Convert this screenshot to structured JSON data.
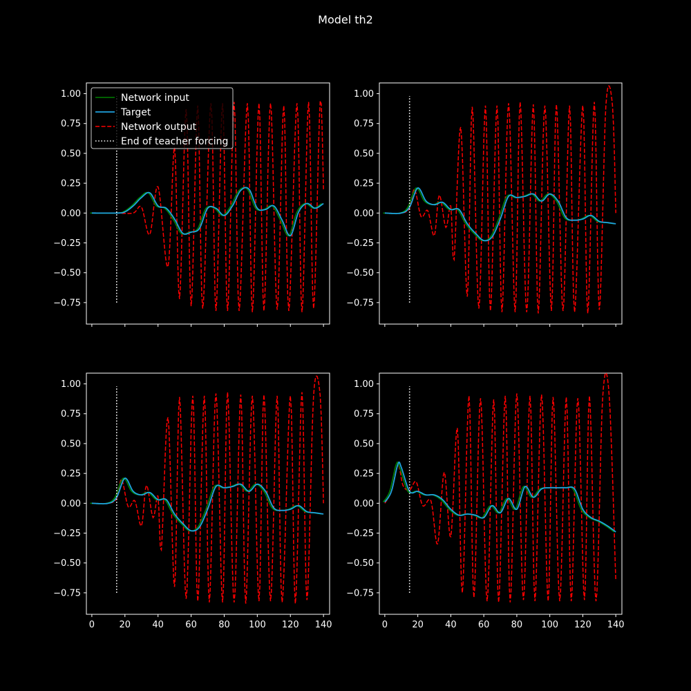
{
  "figure": {
    "title": "Model th2",
    "background": "#000000",
    "colors": {
      "input": "#008000",
      "target": "#1fa3e0",
      "output": "#ff0000",
      "marker": "#ffffff",
      "axes": "#ffffff"
    }
  },
  "legend": {
    "entries": [
      "Network input",
      "Target",
      "Network output",
      "End of teacher forcing"
    ]
  },
  "chart_data": [
    {
      "type": "line",
      "panel": "top-left",
      "xlim": [
        -3.3,
        143.7
      ],
      "ylim": [
        -0.93,
        1.09
      ],
      "xticks": [
        0,
        20,
        40,
        60,
        80,
        100,
        120,
        140
      ],
      "yticks": [
        -0.75,
        -0.5,
        -0.25,
        0.0,
        0.25,
        0.5,
        0.75,
        1.0
      ],
      "show_xtick_labels": false,
      "show_legend": true,
      "legend_position": "upper left",
      "teacher_forcing_end": {
        "x": 15,
        "y_range": [
          -0.75,
          0.98
        ]
      },
      "target_keypoints": [
        [
          0,
          0
        ],
        [
          15,
          0
        ],
        [
          20,
          0.01
        ],
        [
          25,
          0.06
        ],
        [
          30,
          0.13
        ],
        [
          35,
          0.17
        ],
        [
          40,
          0.06
        ],
        [
          45,
          0.04
        ],
        [
          50,
          -0.05
        ],
        [
          55,
          -0.17
        ],
        [
          60,
          -0.16
        ],
        [
          65,
          -0.13
        ],
        [
          70,
          0.04
        ],
        [
          75,
          0.04
        ],
        [
          80,
          -0.02
        ],
        [
          85,
          0.06
        ],
        [
          90,
          0.19
        ],
        [
          95,
          0.2
        ],
        [
          100,
          0.04
        ],
        [
          105,
          0.03
        ],
        [
          110,
          0.06
        ],
        [
          115,
          -0.06
        ],
        [
          120,
          -0.19
        ],
        [
          125,
          0.01
        ],
        [
          130,
          0.08
        ],
        [
          135,
          0.04
        ],
        [
          140,
          0.08
        ]
      ],
      "output_keypoints": [
        [
          0,
          0
        ],
        [
          15,
          0
        ],
        [
          25,
          0
        ],
        [
          30,
          0.05
        ],
        [
          35,
          -0.18
        ],
        [
          40,
          0.22
        ],
        [
          46,
          -0.45
        ],
        [
          50,
          0.55
        ],
        [
          53,
          -0.72
        ],
        [
          57,
          0.87
        ],
        [
          60,
          -0.78
        ],
        [
          64,
          0.9
        ],
        [
          67,
          -0.8
        ],
        [
          72,
          0.92
        ],
        [
          75,
          -0.82
        ],
        [
          79,
          0.92
        ],
        [
          82,
          -0.82
        ],
        [
          86,
          0.93
        ],
        [
          89,
          -0.82
        ],
        [
          94,
          0.92
        ],
        [
          97,
          -0.83
        ],
        [
          101,
          0.92
        ],
        [
          104,
          -0.82
        ],
        [
          108,
          0.92
        ],
        [
          112,
          -0.81
        ],
        [
          116,
          0.9
        ],
        [
          119,
          -0.82
        ],
        [
          124,
          0.92
        ],
        [
          127,
          -0.83
        ],
        [
          131,
          0.93
        ],
        [
          134,
          -0.8
        ],
        [
          138,
          0.94
        ],
        [
          140,
          0.2
        ]
      ]
    },
    {
      "type": "line",
      "panel": "top-right",
      "xlim": [
        -3.3,
        143.7
      ],
      "ylim": [
        -0.93,
        1.09
      ],
      "xticks": [
        0,
        20,
        40,
        60,
        80,
        100,
        120,
        140
      ],
      "yticks": [
        -0.75,
        -0.5,
        -0.25,
        0.0,
        0.25,
        0.5,
        0.75,
        1.0
      ],
      "show_xtick_labels": false,
      "show_legend": false,
      "teacher_forcing_end": {
        "x": 15,
        "y_range": [
          -0.75,
          0.98
        ]
      },
      "target_keypoints": [
        [
          0,
          0
        ],
        [
          10,
          0
        ],
        [
          15,
          0.05
        ],
        [
          20,
          0.21
        ],
        [
          25,
          0.1
        ],
        [
          30,
          0.07
        ],
        [
          35,
          0.09
        ],
        [
          40,
          0.03
        ],
        [
          45,
          0.03
        ],
        [
          50,
          -0.09
        ],
        [
          55,
          -0.17
        ],
        [
          60,
          -0.23
        ],
        [
          65,
          -0.2
        ],
        [
          70,
          -0.05
        ],
        [
          75,
          0.14
        ],
        [
          80,
          0.13
        ],
        [
          85,
          0.14
        ],
        [
          90,
          0.16
        ],
        [
          95,
          0.1
        ],
        [
          100,
          0.16
        ],
        [
          105,
          0.1
        ],
        [
          110,
          -0.04
        ],
        [
          115,
          -0.06
        ],
        [
          120,
          -0.05
        ],
        [
          125,
          -0.02
        ],
        [
          130,
          -0.07
        ],
        [
          135,
          -0.08
        ],
        [
          140,
          -0.09
        ]
      ],
      "output_keypoints": [
        [
          0,
          0
        ],
        [
          10,
          0
        ],
        [
          15,
          0.04
        ],
        [
          18,
          0.2
        ],
        [
          22,
          -0.03
        ],
        [
          26,
          0.02
        ],
        [
          30,
          -0.19
        ],
        [
          33,
          0.15
        ],
        [
          37,
          -0.12
        ],
        [
          40,
          0.06
        ],
        [
          42,
          -0.39
        ],
        [
          46,
          0.72
        ],
        [
          50,
          -0.7
        ],
        [
          53,
          0.89
        ],
        [
          57,
          -0.8
        ],
        [
          61,
          0.9
        ],
        [
          64,
          -0.82
        ],
        [
          68,
          0.9
        ],
        [
          71,
          -0.83
        ],
        [
          75,
          0.92
        ],
        [
          79,
          -0.83
        ],
        [
          82,
          0.93
        ],
        [
          86,
          -0.83
        ],
        [
          90,
          0.91
        ],
        [
          93,
          -0.84
        ],
        [
          97,
          0.9
        ],
        [
          101,
          -0.82
        ],
        [
          104,
          0.91
        ],
        [
          108,
          -0.82
        ],
        [
          112,
          0.9
        ],
        [
          115,
          -0.83
        ],
        [
          120,
          0.9
        ],
        [
          123,
          -0.84
        ],
        [
          127,
          0.93
        ],
        [
          130,
          -0.81
        ],
        [
          134,
          0.9
        ],
        [
          138,
          0.9
        ],
        [
          140,
          0
        ]
      ]
    },
    {
      "type": "line",
      "panel": "bottom-left",
      "xlim": [
        -3.3,
        143.7
      ],
      "ylim": [
        -0.93,
        1.09
      ],
      "xticks": [
        0,
        20,
        40,
        60,
        80,
        100,
        120,
        140
      ],
      "yticks": [
        -0.75,
        -0.5,
        -0.25,
        0.0,
        0.25,
        0.5,
        0.75,
        1.0
      ],
      "show_xtick_labels": true,
      "show_legend": false,
      "teacher_forcing_end": {
        "x": 15,
        "y_range": [
          -0.75,
          0.98
        ]
      },
      "target_keypoints": [
        [
          0,
          0
        ],
        [
          10,
          0
        ],
        [
          15,
          0.05
        ],
        [
          20,
          0.21
        ],
        [
          25,
          0.1
        ],
        [
          30,
          0.07
        ],
        [
          35,
          0.09
        ],
        [
          40,
          0.03
        ],
        [
          45,
          0.03
        ],
        [
          50,
          -0.09
        ],
        [
          55,
          -0.17
        ],
        [
          60,
          -0.23
        ],
        [
          65,
          -0.2
        ],
        [
          70,
          -0.05
        ],
        [
          75,
          0.14
        ],
        [
          80,
          0.13
        ],
        [
          85,
          0.14
        ],
        [
          90,
          0.16
        ],
        [
          95,
          0.1
        ],
        [
          100,
          0.16
        ],
        [
          105,
          0.1
        ],
        [
          110,
          -0.04
        ],
        [
          115,
          -0.06
        ],
        [
          120,
          -0.05
        ],
        [
          125,
          -0.02
        ],
        [
          130,
          -0.07
        ],
        [
          135,
          -0.08
        ],
        [
          140,
          -0.09
        ]
      ],
      "output_keypoints": [
        [
          0,
          0
        ],
        [
          10,
          0
        ],
        [
          15,
          0.04
        ],
        [
          18,
          0.2
        ],
        [
          22,
          -0.03
        ],
        [
          26,
          0.02
        ],
        [
          30,
          -0.19
        ],
        [
          33,
          0.15
        ],
        [
          37,
          -0.12
        ],
        [
          40,
          0.06
        ],
        [
          42,
          -0.39
        ],
        [
          46,
          0.72
        ],
        [
          50,
          -0.7
        ],
        [
          53,
          0.89
        ],
        [
          57,
          -0.8
        ],
        [
          61,
          0.9
        ],
        [
          64,
          -0.82
        ],
        [
          68,
          0.9
        ],
        [
          71,
          -0.83
        ],
        [
          75,
          0.92
        ],
        [
          79,
          -0.83
        ],
        [
          82,
          0.93
        ],
        [
          86,
          -0.83
        ],
        [
          90,
          0.91
        ],
        [
          93,
          -0.84
        ],
        [
          97,
          0.9
        ],
        [
          101,
          -0.82
        ],
        [
          104,
          0.91
        ],
        [
          108,
          -0.82
        ],
        [
          112,
          0.9
        ],
        [
          115,
          -0.83
        ],
        [
          120,
          0.9
        ],
        [
          123,
          -0.84
        ],
        [
          127,
          0.93
        ],
        [
          130,
          -0.81
        ],
        [
          134,
          0.9
        ],
        [
          138,
          0.9
        ],
        [
          140,
          0
        ]
      ]
    },
    {
      "type": "line",
      "panel": "bottom-right",
      "xlim": [
        -3.3,
        143.7
      ],
      "ylim": [
        -0.93,
        1.09
      ],
      "xticks": [
        0,
        20,
        40,
        60,
        80,
        100,
        120,
        140
      ],
      "yticks": [
        -0.75,
        -0.5,
        -0.25,
        0.0,
        0.25,
        0.5,
        0.75,
        1.0
      ],
      "show_xtick_labels": true,
      "show_legend": false,
      "teacher_forcing_end": {
        "x": 15,
        "y_range": [
          -0.75,
          0.98
        ]
      },
      "target_keypoints": [
        [
          0,
          0.01
        ],
        [
          4,
          0.1
        ],
        [
          8,
          0.33
        ],
        [
          10,
          0.3
        ],
        [
          15,
          0.1
        ],
        [
          20,
          0.1
        ],
        [
          25,
          0.07
        ],
        [
          30,
          0.07
        ],
        [
          35,
          0.03
        ],
        [
          40,
          -0.05
        ],
        [
          45,
          -0.1
        ],
        [
          50,
          -0.09
        ],
        [
          55,
          -0.1
        ],
        [
          60,
          -0.12
        ],
        [
          65,
          -0.02
        ],
        [
          70,
          -0.08
        ],
        [
          75,
          0.04
        ],
        [
          80,
          -0.05
        ],
        [
          85,
          0.14
        ],
        [
          90,
          0.05
        ],
        [
          95,
          0.12
        ],
        [
          100,
          0.13
        ],
        [
          105,
          0.13
        ],
        [
          110,
          0.13
        ],
        [
          115,
          0.12
        ],
        [
          120,
          -0.05
        ],
        [
          125,
          -0.12
        ],
        [
          130,
          -0.15
        ],
        [
          135,
          -0.19
        ],
        [
          140,
          -0.24
        ]
      ],
      "output_keypoints": [
        [
          0,
          0
        ],
        [
          4,
          0.1
        ],
        [
          8,
          0.32
        ],
        [
          11,
          0.15
        ],
        [
          15,
          0.11
        ],
        [
          19,
          0.18
        ],
        [
          23,
          -0.02
        ],
        [
          28,
          0.02
        ],
        [
          32,
          -0.34
        ],
        [
          36,
          0.26
        ],
        [
          40,
          -0.28
        ],
        [
          44,
          0.63
        ],
        [
          47,
          -0.75
        ],
        [
          51,
          0.9
        ],
        [
          54,
          -0.79
        ],
        [
          58,
          0.88
        ],
        [
          62,
          -0.82
        ],
        [
          66,
          0.87
        ],
        [
          69,
          -0.83
        ],
        [
          73,
          0.9
        ],
        [
          76,
          -0.83
        ],
        [
          80,
          0.92
        ],
        [
          84,
          -0.81
        ],
        [
          88,
          0.9
        ],
        [
          91,
          -0.82
        ],
        [
          95,
          0.91
        ],
        [
          99,
          -0.82
        ],
        [
          102,
          0.89
        ],
        [
          106,
          -0.82
        ],
        [
          110,
          0.89
        ],
        [
          113,
          -0.82
        ],
        [
          117,
          0.88
        ],
        [
          121,
          -0.81
        ],
        [
          124,
          0.9
        ],
        [
          128,
          -0.82
        ],
        [
          132,
          0.88
        ],
        [
          136,
          0.9
        ],
        [
          140,
          -0.65
        ]
      ]
    }
  ]
}
